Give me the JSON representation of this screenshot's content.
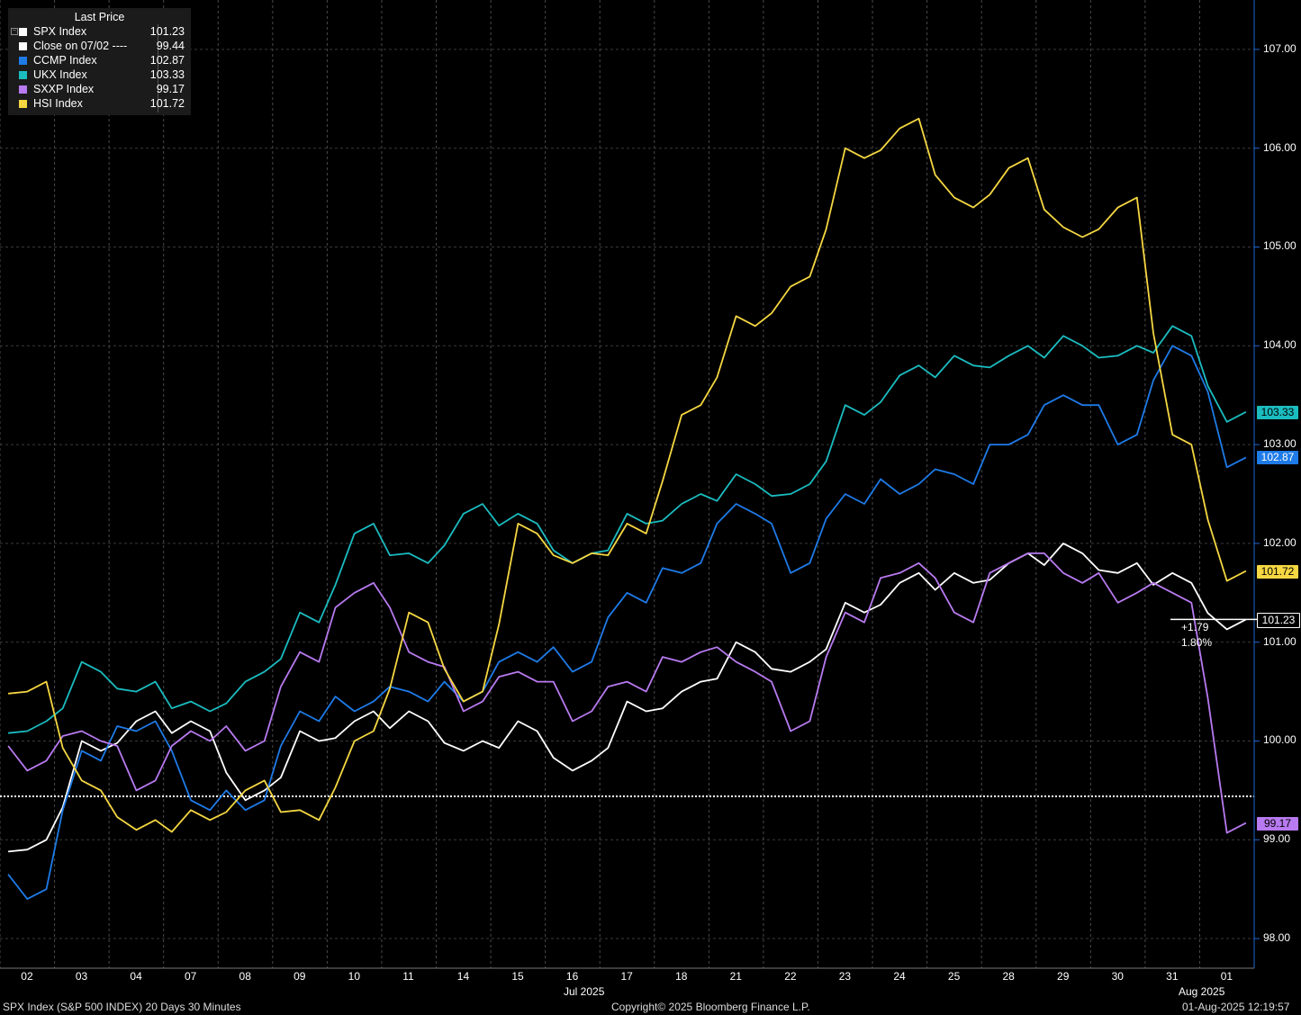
{
  "legend": {
    "header": "Last Price",
    "collapse_icon": "minus-box-icon",
    "items": [
      {
        "label": "SPX Index",
        "value": "101.23",
        "color": "#ffffff"
      },
      {
        "label": "Close on 07/02 ----",
        "value": "99.44",
        "color": "#ffffff"
      },
      {
        "label": "CCMP Index",
        "value": "102.87",
        "color": "#1e7be8"
      },
      {
        "label": "UKX Index",
        "value": "103.33",
        "color": "#1bbcc0"
      },
      {
        "label": "SXXP Index",
        "value": "99.17",
        "color": "#b87af0"
      },
      {
        "label": "HSI Index",
        "value": "101.72",
        "color": "#f5d742"
      }
    ]
  },
  "footer": {
    "left": "SPX Index (S&P 500 INDEX) 20 Days 30 Minutes",
    "center": "Copyright© 2025 Bloomberg Finance L.P.",
    "right": "01-Aug-2025 12:19:57"
  },
  "change": {
    "abs": "+1.79",
    "pct": "1.80%"
  },
  "tags": [
    {
      "value": "103.33",
      "bg": "#1bbcc0",
      "fg": "#000000"
    },
    {
      "value": "102.87",
      "bg": "#1e7be8",
      "fg": "#ffffff"
    },
    {
      "value": "101.72",
      "bg": "#f5d742",
      "fg": "#000000"
    },
    {
      "value": "101.23",
      "bg": "#000000",
      "fg": "#ffffff"
    },
    {
      "value": "99.17",
      "bg": "#b87af0",
      "fg": "#000000"
    }
  ],
  "chart_data": {
    "type": "line",
    "ylim": [
      97.7,
      107.5
    ],
    "yticks": [
      "98.00",
      "99.00",
      "100.00",
      "101.00",
      "102.00",
      "103.00",
      "104.00",
      "105.00",
      "106.00",
      "107.00"
    ],
    "categories": [
      "02",
      "03",
      "04",
      "07",
      "08",
      "09",
      "10",
      "11",
      "14",
      "15",
      "16",
      "17",
      "18",
      "21",
      "22",
      "23",
      "24",
      "25",
      "28",
      "29",
      "30",
      "31",
      "01"
    ],
    "x_group_labels": [
      "Jul 2025",
      "Aug 2025"
    ],
    "reference_line": {
      "name": "Close on 07/02",
      "value": 99.44
    },
    "grid": "vertical dashed per day, horizontal per 1.00",
    "series": [
      {
        "name": "SPX Index",
        "color": "#ffffff",
        "values": [
          99.0,
          99.9,
          100.3,
          100.1,
          99.5,
          100.0,
          100.3,
          100.2,
          100.0,
          100.1,
          99.8,
          100.3,
          100.6,
          100.9,
          100.8,
          101.3,
          101.7,
          101.6,
          101.9,
          101.9,
          101.8,
          101.6,
          101.23
        ]
      },
      {
        "name": "CCMP Index",
        "color": "#1e7be8",
        "values": [
          98.5,
          99.8,
          100.2,
          99.3,
          99.4,
          100.2,
          100.4,
          100.4,
          100.5,
          100.8,
          100.8,
          101.4,
          101.8,
          102.3,
          101.8,
          102.4,
          102.6,
          102.6,
          103.1,
          103.4,
          103.1,
          103.9,
          102.87
        ]
      },
      {
        "name": "UKX Index",
        "color": "#1bbcc0",
        "values": [
          100.2,
          100.7,
          100.6,
          100.3,
          100.7,
          101.2,
          102.2,
          101.8,
          102.4,
          102.2,
          101.9,
          102.2,
          102.5,
          102.6,
          102.6,
          103.3,
          103.8,
          103.8,
          104.0,
          104.0,
          104.0,
          104.1,
          103.33
        ]
      },
      {
        "name": "SXXP Index",
        "color": "#b87af0",
        "values": [
          99.8,
          100.0,
          99.6,
          100.0,
          100.0,
          100.8,
          101.6,
          100.8,
          100.4,
          100.6,
          100.3,
          100.5,
          100.9,
          100.7,
          100.2,
          101.2,
          101.8,
          101.2,
          101.9,
          101.6,
          101.5,
          101.4,
          99.17
        ]
      },
      {
        "name": "HSI Index",
        "color": "#f5d742",
        "values": [
          100.6,
          99.5,
          99.2,
          99.2,
          99.6,
          99.2,
          100.1,
          101.2,
          100.5,
          102.1,
          101.9,
          102.1,
          103.4,
          104.2,
          104.7,
          105.9,
          106.3,
          105.4,
          105.9,
          105.1,
          105.5,
          103.0,
          101.72
        ]
      }
    ]
  }
}
